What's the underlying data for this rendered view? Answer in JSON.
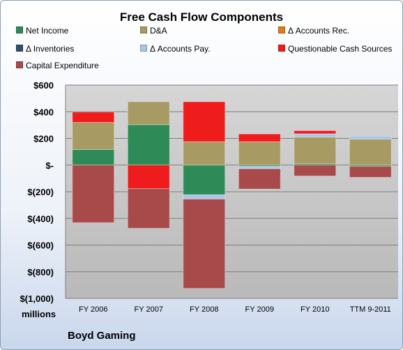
{
  "chart_data": {
    "type": "bar",
    "stacked": true,
    "title": "Free Cash Flow Components",
    "units": "millions",
    "company": "Boyd Gaming",
    "categories": [
      "FY 2006",
      "FY 2007",
      "FY 2008",
      "FY 2009",
      "FY 2010",
      "TTM 9-2011"
    ],
    "ylim": [
      -1000,
      600
    ],
    "yticks": [
      600,
      400,
      200,
      0,
      -200,
      -400,
      -600,
      -800,
      -1000
    ],
    "ytick_labels": [
      "$600",
      "$400",
      "$200",
      "$-",
      "$(200)",
      "$(400)",
      "$(600)",
      "$(800)",
      "$(1,000)"
    ],
    "grid": true,
    "legend_position": "top",
    "series": [
      {
        "name": "Net Income",
        "color": "#2e8b57",
        "values": [
          117,
          303,
          -223,
          -10,
          10,
          -10
        ]
      },
      {
        "name": "D&A",
        "color": "#a79b63",
        "values": [
          203,
          172,
          175,
          175,
          200,
          195
        ]
      },
      {
        "name": "Δ Accounts Rec.",
        "color": "#e07b1a",
        "values": [
          0,
          0,
          0,
          0,
          0,
          0
        ]
      },
      {
        "name": "Δ Inventories",
        "color": "#2f4f6f",
        "values": [
          0,
          0,
          0,
          0,
          0,
          0
        ]
      },
      {
        "name": "Δ Accounts Pay.",
        "color": "#a9c6ea",
        "values": [
          0,
          0,
          -32,
          -18,
          25,
          22
        ]
      },
      {
        "name": "Questionable Cash Sources",
        "color": "#ee1c1c",
        "values": [
          78,
          -177,
          300,
          58,
          23,
          0
        ]
      },
      {
        "name": "Capital Expenditure",
        "color": "#a84a4a",
        "values": [
          -432,
          -297,
          -670,
          -152,
          -82,
          -82
        ]
      }
    ]
  }
}
